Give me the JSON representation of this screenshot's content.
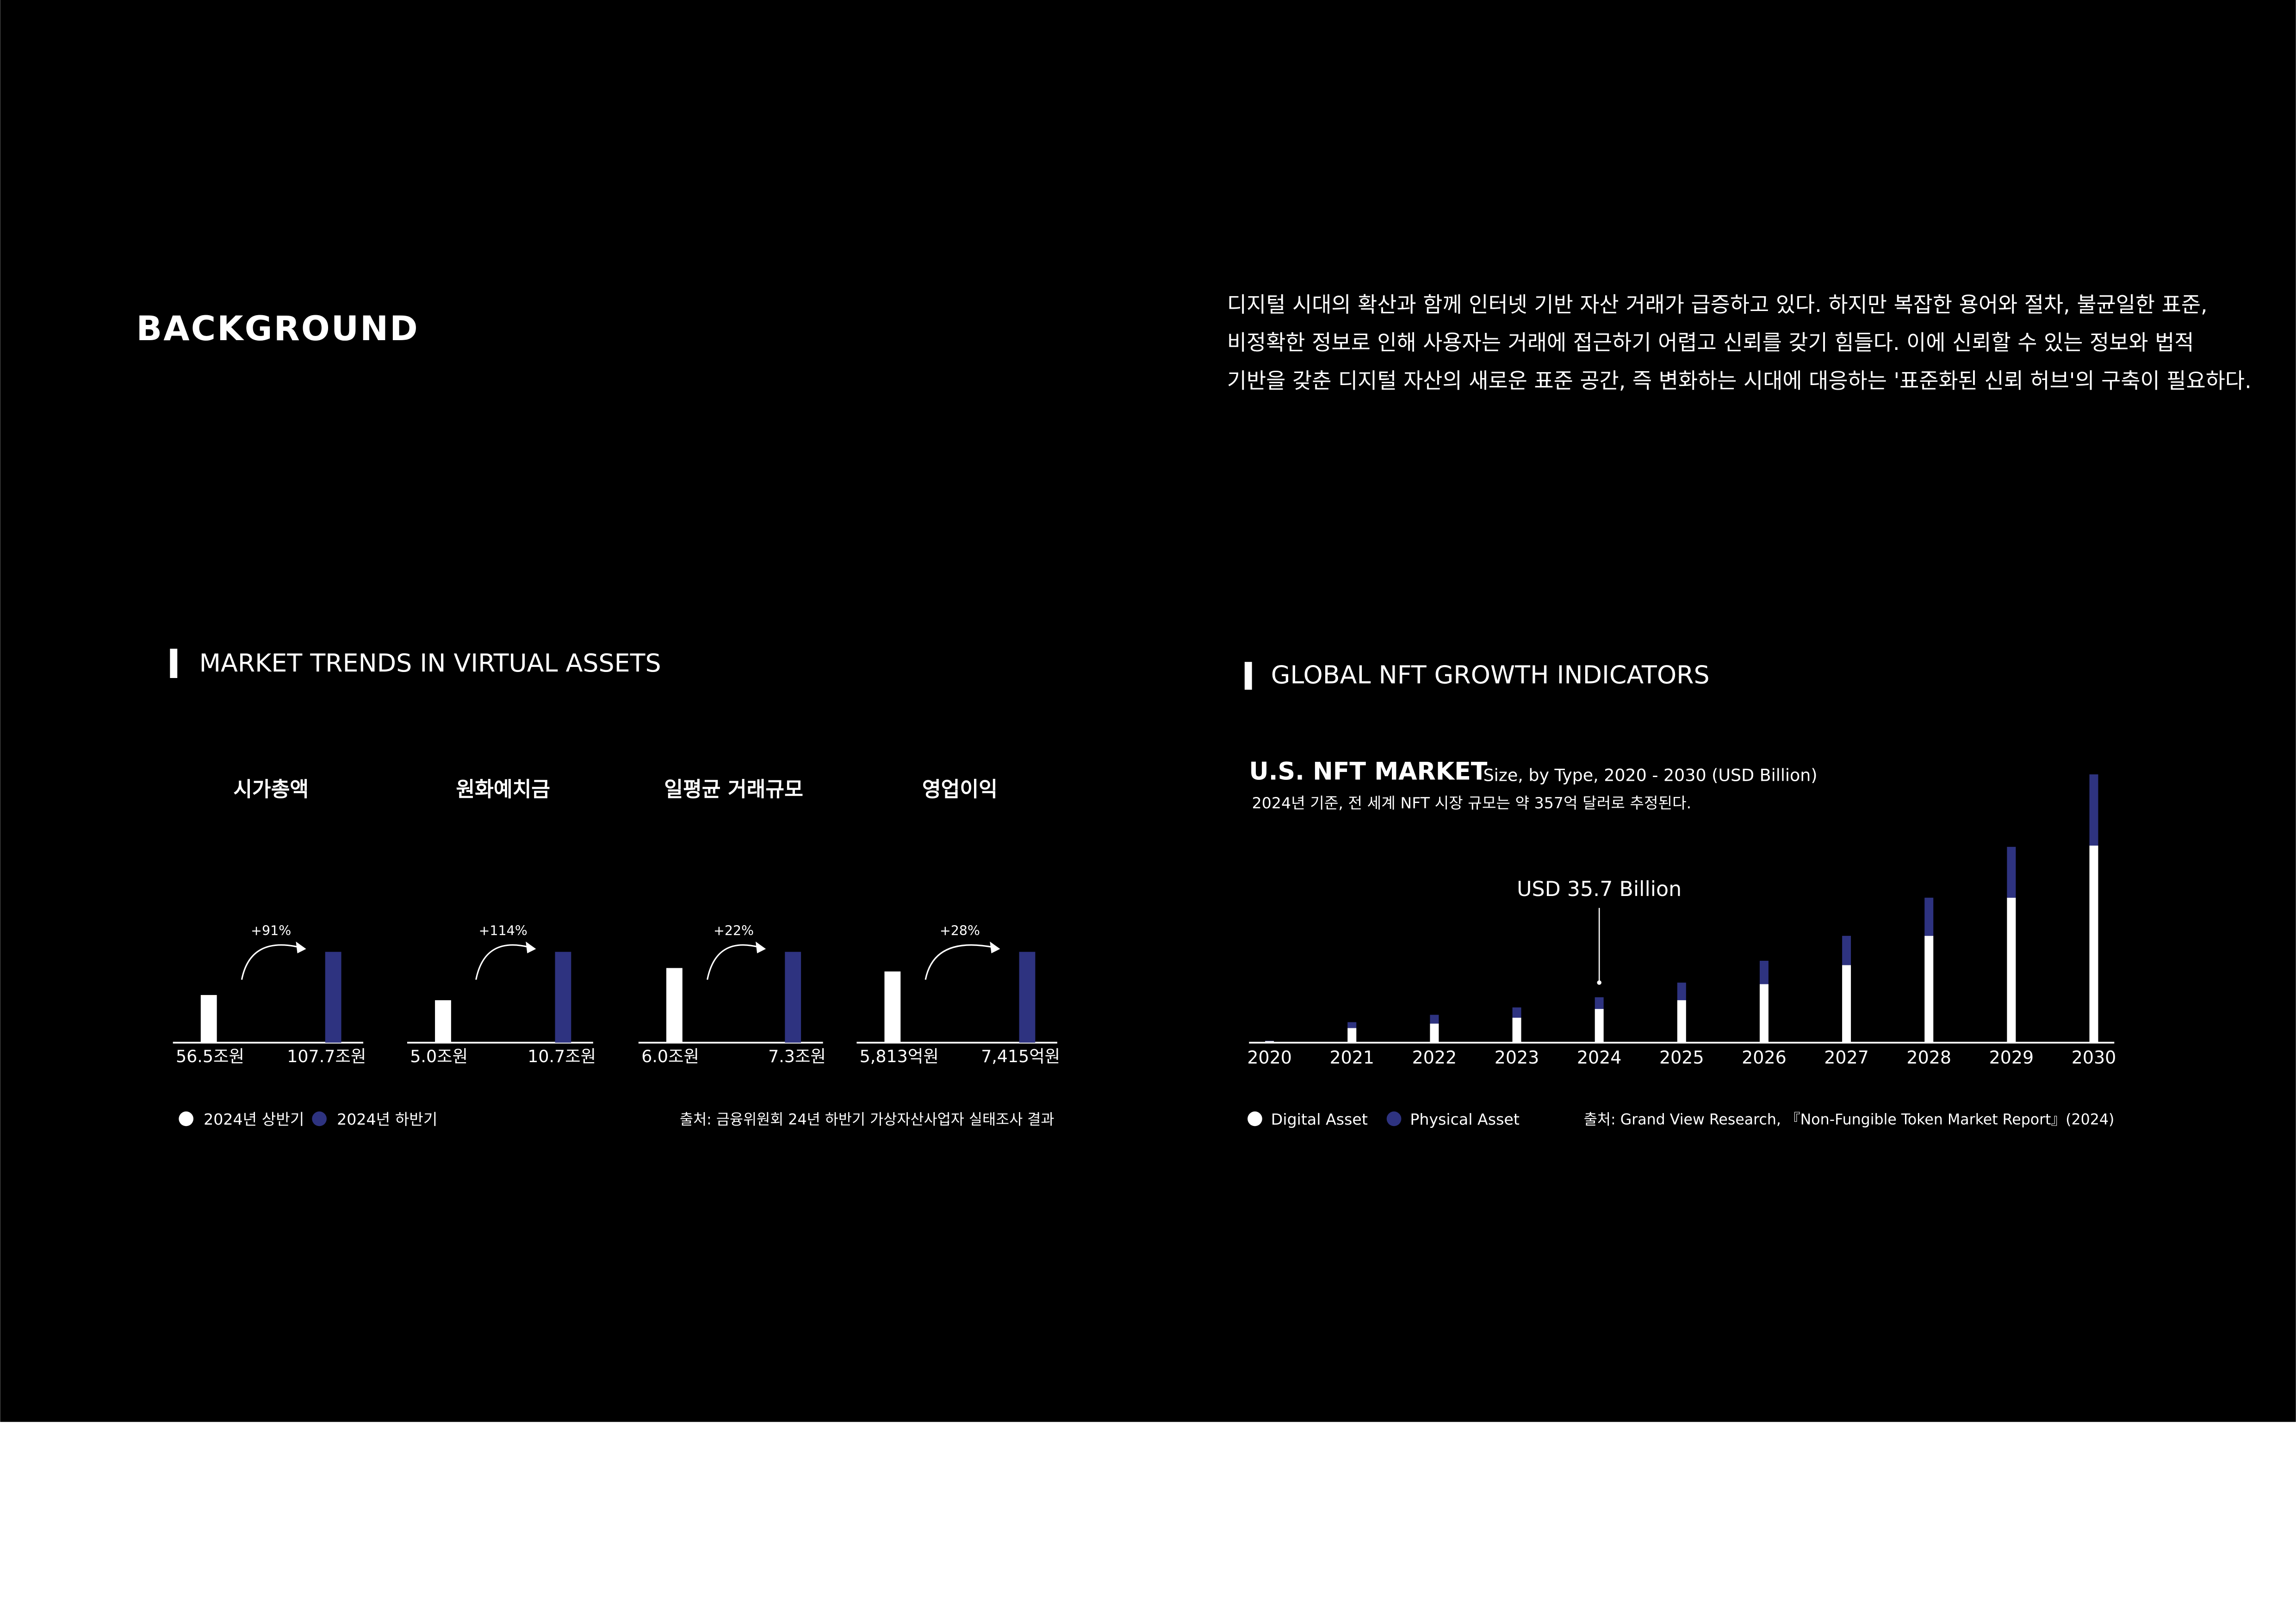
{
  "header": {
    "title": "BACKGROUND",
    "paragraph": [
      "디지털 시대의 확산과 함께 인터넷 기반 자산 거래가 급증하고 있다. 하지만 복잡한 용어와 절차, 불균일한 표준,",
      "비정확한 정보로 인해 사용자는 거래에 접근하기 어렵고 신뢰를 갖기 힘들다. 이에 신뢰할 수 있는 정보와 법적",
      "기반을 갖춘 디지털 자산의 새로운 표준 공간, 즉 변화하는 시대에 대응하는 '표준화된 신뢰 허브'의 구축이 필요하다."
    ]
  },
  "sections": [
    "MARKET TRENDS IN VIRTUAL ASSETS",
    "GLOBAL NFT GROWTH INDICATORS"
  ],
  "chart_data": [
    {
      "type": "paired-bar",
      "categories": [
        "시가총액",
        "원화예치금",
        "일평균 거래규모",
        "영업이익"
      ],
      "series": [
        {
          "name": "2024년 상반기",
          "color": "#ffffff",
          "values": [
            56.5,
            5.0,
            6.0,
            5813
          ],
          "value_labels": [
            "56.5조원",
            "5.0조원",
            "6.0조원",
            "5,813억원"
          ]
        },
        {
          "name": "2024년 하반기",
          "color": "#2e3380",
          "values": [
            107.7,
            10.7,
            7.3,
            7415
          ],
          "value_labels": [
            "107.7조원",
            "10.7조원",
            "7.3조원",
            "7,415억원"
          ]
        }
      ],
      "annotations": [
        "+91%",
        "+114%",
        "+22%",
        "+28%"
      ],
      "source": "출처: 금융위원회 24년 하반기 가상자산사업자 실태조사 결과"
    },
    {
      "type": "stacked-bar",
      "title": "U.S. NFT MARKET",
      "subtitle": "Size, by Type, 2020 - 2030 (USD Billion)",
      "note": "2024년 기준, 전 세계 NFT 시장 규모는 약 357억 달러로 추정된다.",
      "categories": [
        "2020",
        "2021",
        "2022",
        "2023",
        "2024",
        "2025",
        "2026",
        "2027",
        "2028",
        "2029",
        "2030"
      ],
      "series": [
        {
          "name": "Digital Asset",
          "color": "#ffffff",
          "values": [
            1.2,
            11.5,
            15.0,
            19.6,
            26.5,
            33.4,
            46,
            61,
            84,
            114,
            155
          ]
        },
        {
          "name": "Physical Asset",
          "color": "#2e3380",
          "values": [
            0.3,
            4.6,
            6.9,
            8.1,
            9.2,
            13.8,
            18.4,
            23,
            30,
            40,
            56
          ]
        }
      ],
      "ylim": [
        0,
        220
      ],
      "annotation": {
        "text": "USD 35.7 Billion",
        "x": "2024",
        "value": 35.7
      },
      "source": "출처: Grand View Research, 『Non-Fungible Token Market Report』(2024)"
    }
  ]
}
